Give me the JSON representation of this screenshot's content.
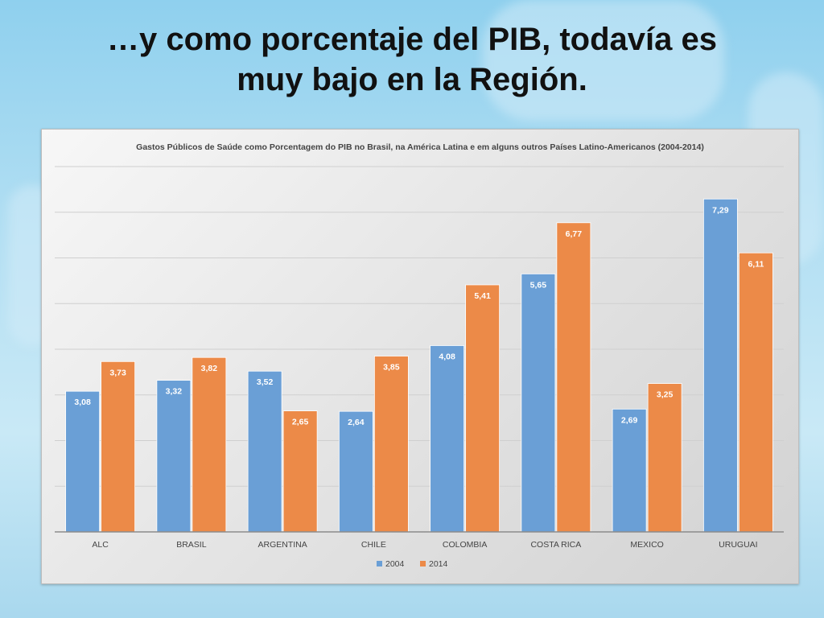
{
  "slide": {
    "title_line1": "…y como porcentaje del PIB, todavía es",
    "title_line2": "muy bajo en la Región."
  },
  "colors": {
    "series_2004": "#6a9fd6",
    "series_2014": "#ec8a48",
    "gridline": "#cfcfcf",
    "axis": "#8c8c8c",
    "text": "#444444"
  },
  "chart_data": {
    "type": "bar",
    "title": "Gastos Públicos de Saúde como Porcentagem do PIB  no Brasil, na América Latina e em alguns outros Países Latino-Americanos (2004-2014)",
    "categories": [
      "ALC",
      "BRASIL",
      "ARGENTINA",
      "CHILE",
      "COLOMBIA",
      "COSTA RICA",
      "MEXICO",
      "URUGUAI"
    ],
    "series": [
      {
        "name": "2004",
        "values": [
          3.08,
          3.32,
          3.52,
          2.64,
          4.08,
          5.65,
          2.69,
          7.29
        ],
        "labels": [
          "3,08",
          "3,32",
          "3,52",
          "2,64",
          "4,08",
          "5,65",
          "2,69",
          "7,29"
        ]
      },
      {
        "name": "2014",
        "values": [
          3.73,
          3.82,
          2.65,
          3.85,
          5.41,
          6.77,
          3.25,
          6.11
        ],
        "labels": [
          "3,73",
          "3,82",
          "2,65",
          "3,85",
          "5,41",
          "6,77",
          "3,25",
          "6,11"
        ]
      }
    ],
    "ylim": [
      0,
      8
    ],
    "grid": true,
    "legend_position": "bottom-center",
    "xlabel": "",
    "ylabel": ""
  }
}
